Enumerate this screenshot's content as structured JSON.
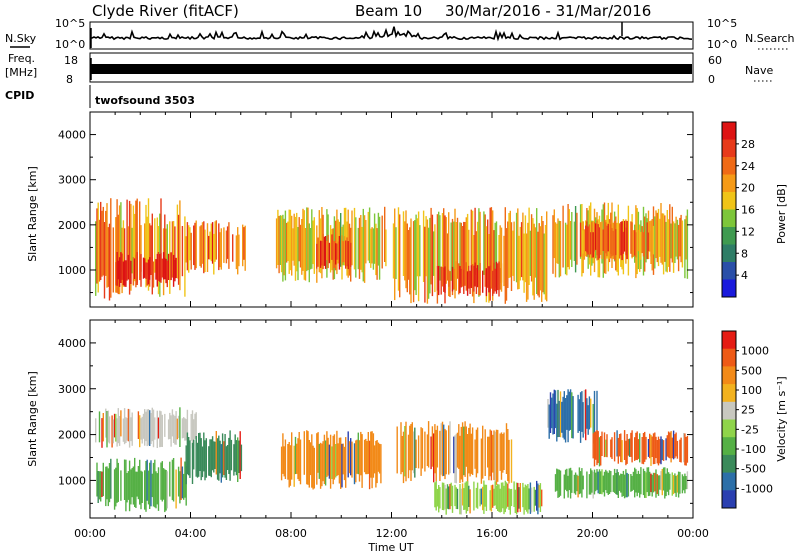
{
  "header": {
    "title": "Clyde River (fitACF)",
    "beam": "Beam 10",
    "date_range": "30/Mar/2016 - 31/Mar/2016"
  },
  "strip_panels": {
    "nsky_label": "N.Sky",
    "nsky_ticks": [
      "10^5",
      "10^0"
    ],
    "nsearch_label": "N.Search",
    "nsearch_ticks": [
      "10^5",
      "10^0"
    ],
    "freq_label": "Freq.",
    "freq_unit": "[MHz]",
    "freq_ticks": [
      "18",
      "8"
    ],
    "nave_label": "Nave",
    "nave_ticks": [
      "60",
      "0"
    ],
    "cpid_label": "CPID",
    "cpid_value": "twofsound 3503"
  },
  "chart_data": [
    {
      "type": "heatmap",
      "name": "power-panel",
      "ylabel": "Slant Range [km]",
      "yticks": [
        1000,
        2000,
        3000,
        4000
      ],
      "ylim": [
        180,
        4500
      ],
      "xlim_hours": [
        0,
        24
      ],
      "colorbar_label": "Power [dB]",
      "colorbar_ticks": [
        "28",
        "24",
        "20",
        "16",
        "12",
        "8",
        "4"
      ],
      "colorbar_colors": [
        "#1a1adc",
        "#2a4fa8",
        "#2e7d66",
        "#3f9a50",
        "#7dc63a",
        "#f0c418",
        "#f59a17",
        "#ef6a16",
        "#e73a1a",
        "#dd1313"
      ],
      "echo_regions": [
        {
          "t0": 0.2,
          "t1": 3.8,
          "r0": 300,
          "r1": 2600,
          "level": 0.7
        },
        {
          "t0": 1.0,
          "t1": 3.4,
          "r0": 600,
          "r1": 1400,
          "level": 0.95
        },
        {
          "t0": 3.8,
          "t1": 6.2,
          "r0": 900,
          "r1": 2100,
          "level": 0.75
        },
        {
          "t0": 7.4,
          "t1": 11.8,
          "r0": 700,
          "r1": 2400,
          "level": 0.6
        },
        {
          "t0": 9.0,
          "t1": 10.4,
          "r0": 1000,
          "r1": 1800,
          "level": 0.85
        },
        {
          "t0": 12.0,
          "t1": 18.2,
          "r0": 250,
          "r1": 2400,
          "level": 0.65
        },
        {
          "t0": 13.8,
          "t1": 16.4,
          "r0": 400,
          "r1": 1200,
          "level": 0.9
        },
        {
          "t0": 18.4,
          "t1": 23.8,
          "r0": 800,
          "r1": 2500,
          "level": 0.6
        },
        {
          "t0": 19.5,
          "t1": 22.5,
          "r0": 1200,
          "r1": 2100,
          "level": 0.8
        }
      ]
    },
    {
      "type": "heatmap",
      "name": "velocity-panel",
      "ylabel": "Slant Range [km]",
      "yticks": [
        1000,
        2000,
        3000,
        4000
      ],
      "ylim": [
        180,
        4500
      ],
      "xlim_hours": [
        0,
        24
      ],
      "xticks": [
        "00:00",
        "04:00",
        "08:00",
        "12:00",
        "16:00",
        "20:00",
        "00:00"
      ],
      "xlabel": "Time UT",
      "colorbar_label": "Velocity [m s⁻¹]",
      "colorbar_ticks": [
        "1000",
        "500",
        "100",
        "25",
        "-25",
        "-100",
        "-500",
        "-1000"
      ],
      "colorbar_colors": [
        "#2a3fb0",
        "#2c6fa8",
        "#3a8a5a",
        "#55b045",
        "#8fd44a",
        "#c8c8c0",
        "#f2b21f",
        "#f28a18",
        "#ee5a16",
        "#e51c14"
      ],
      "echo_regions": [
        {
          "t0": 0.2,
          "t1": 3.8,
          "r0": 300,
          "r1": 1500,
          "color": "#55b045"
        },
        {
          "t0": 0.2,
          "t1": 4.2,
          "r0": 1700,
          "r1": 2600,
          "color": "#c8c8c0"
        },
        {
          "t0": 3.8,
          "t1": 6.0,
          "r0": 900,
          "r1": 2100,
          "color": "#3a8a5a"
        },
        {
          "t0": 7.6,
          "t1": 11.6,
          "r0": 800,
          "r1": 2100,
          "color": "#f28a18"
        },
        {
          "t0": 12.2,
          "t1": 16.8,
          "r0": 900,
          "r1": 2300,
          "color": "#f28a18"
        },
        {
          "t0": 13.6,
          "t1": 18.0,
          "r0": 250,
          "r1": 1000,
          "color": "#8fd44a"
        },
        {
          "t0": 18.2,
          "t1": 20.2,
          "r0": 1800,
          "r1": 3000,
          "color": "#2c6fa8"
        },
        {
          "t0": 20.0,
          "t1": 23.8,
          "r0": 1300,
          "r1": 2100,
          "color": "#ee5a16"
        },
        {
          "t0": 18.5,
          "t1": 23.8,
          "r0": 600,
          "r1": 1300,
          "color": "#55b045"
        }
      ]
    }
  ]
}
